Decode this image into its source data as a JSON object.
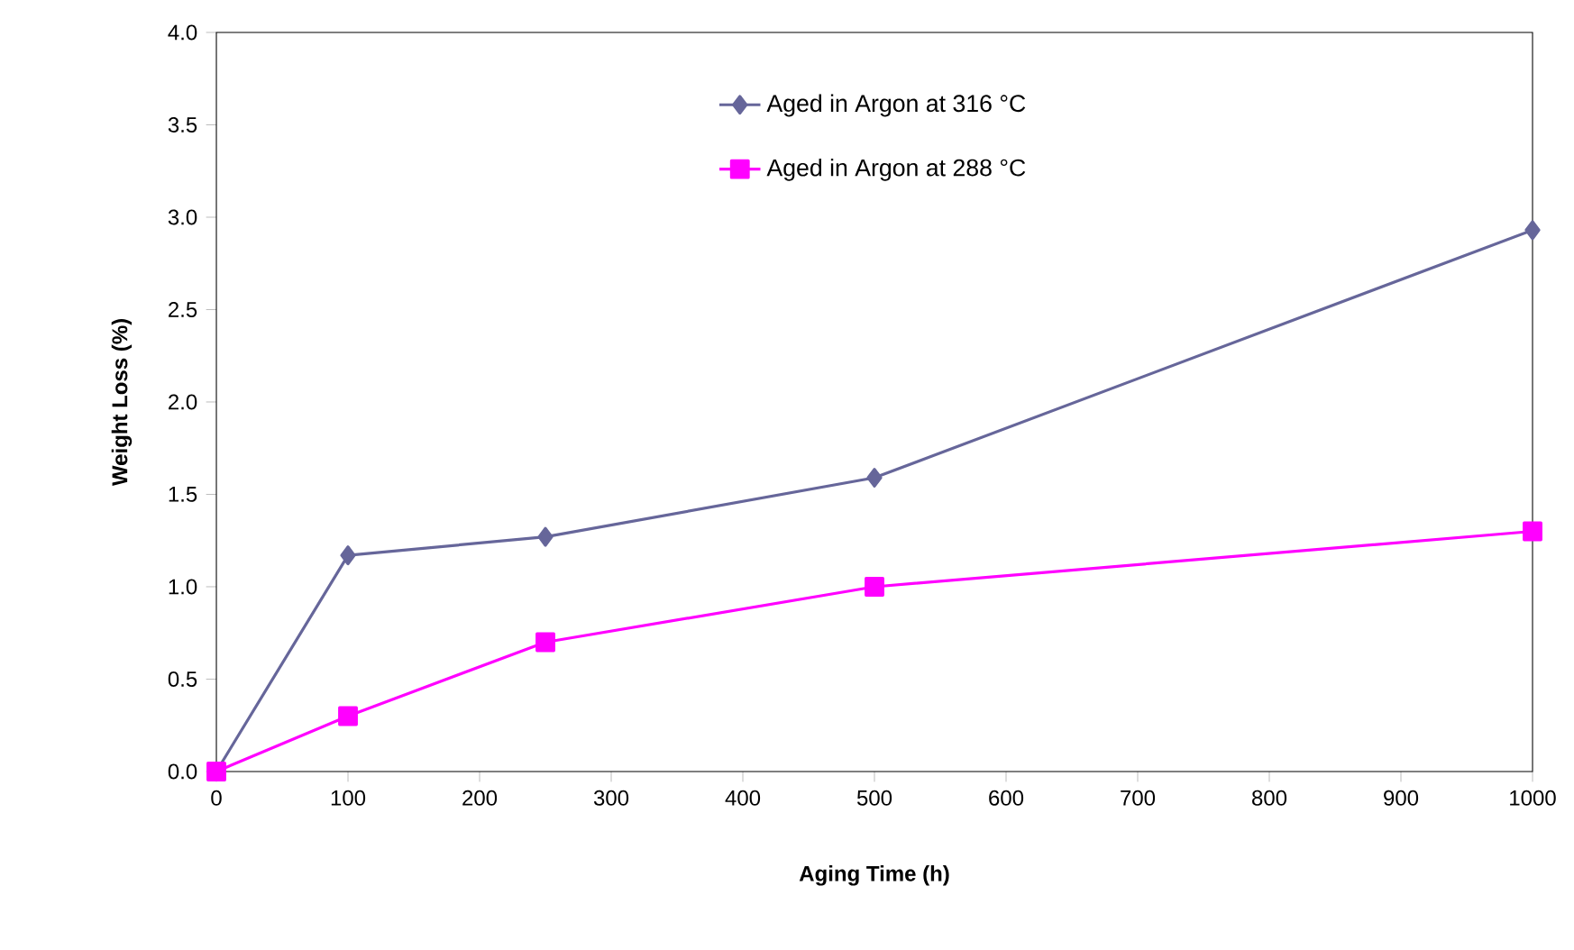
{
  "chart_data": {
    "type": "line",
    "xlabel": "Aging Time (h)",
    "ylabel": "Weight Loss (%)",
    "xlim": [
      0,
      1000
    ],
    "xticks": [
      0,
      100,
      200,
      300,
      400,
      500,
      600,
      700,
      800,
      900,
      1000
    ],
    "ylim": [
      0,
      4
    ],
    "yticks": [
      {
        "value": 0,
        "label": "0.0"
      },
      {
        "value": 0.5,
        "label": "0.5"
      },
      {
        "value": 1,
        "label": "1.0"
      },
      {
        "value": 1.5,
        "label": "1.5"
      },
      {
        "value": 2,
        "label": "2.0"
      },
      {
        "value": 2.5,
        "label": "2.5"
      },
      {
        "value": 3,
        "label": "3.0"
      },
      {
        "value": 3.5,
        "label": "3.5"
      },
      {
        "value": 4,
        "label": "4.0"
      }
    ],
    "x": [
      0,
      100,
      250,
      500,
      1000
    ],
    "grid": false,
    "legend": "top",
    "line_style": "solid",
    "series": [
      {
        "name": "Aged in Argon at 316 °C",
        "color": "#66669a",
        "marker": "diamond",
        "values": [
          0,
          1.17,
          1.27,
          1.59,
          2.93
        ]
      },
      {
        "name": "Aged in Argon at 288 °C",
        "color": "#ff00ff",
        "marker": "square",
        "values": [
          0,
          0.3,
          0.7,
          1.0,
          1.3
        ]
      }
    ]
  }
}
